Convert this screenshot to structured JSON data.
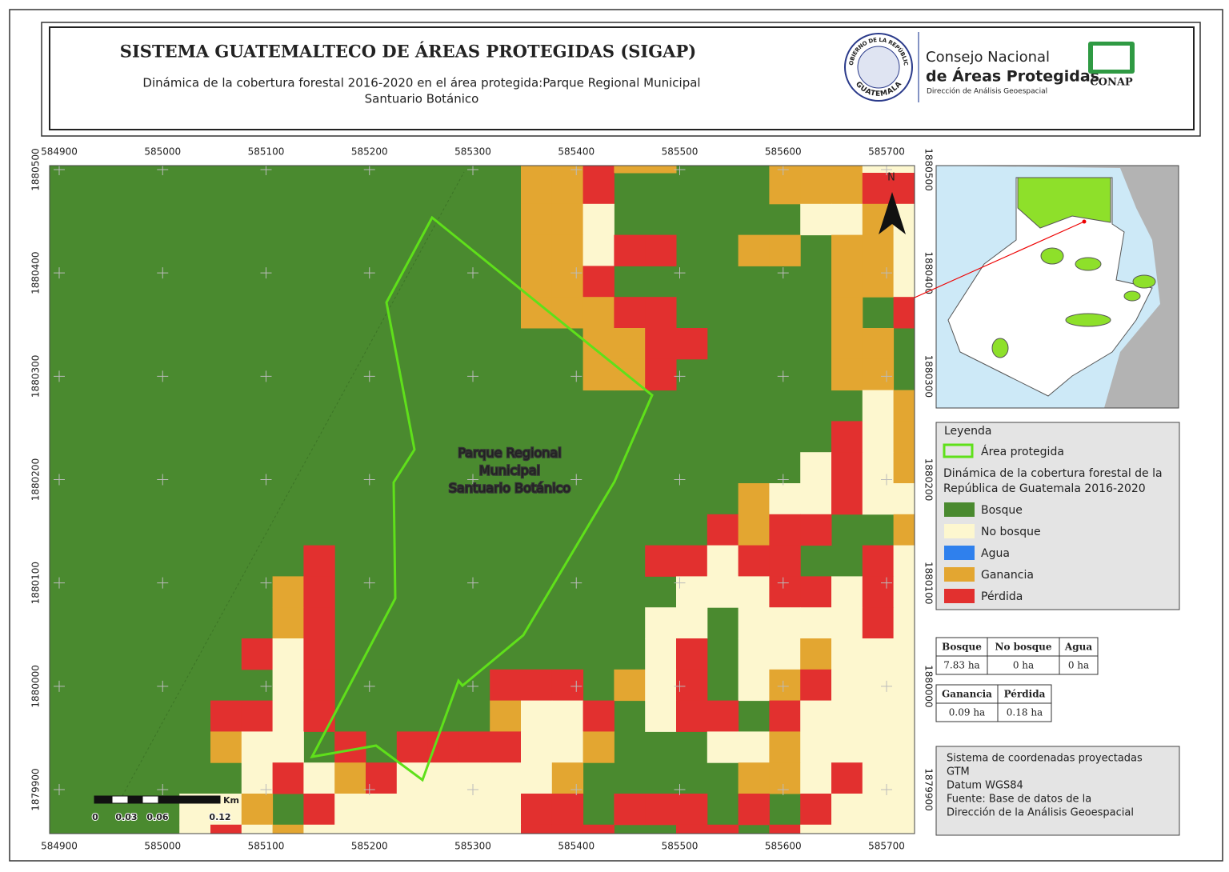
{
  "header": {
    "title": "SISTEMA GUATEMALTECO DE ÁREAS PROTEGIDAS  (SIGAP)",
    "subtitle": [
      "Dinámica de la cobertura forestal 2016-2020 en el área protegida:Parque Regional Municipal",
      "Santuario Botánico"
    ],
    "seal_top": "GOBIERNO DE LA REPÚBLICA",
    "seal_bottom": "GUATEMALA",
    "logo": [
      "Consejo Nacional",
      "de Áreas Protegidas",
      "Dirección de Análisis Geoespacial"
    ],
    "conap": "CONAP"
  },
  "map": {
    "area_label": [
      "Parque Regional",
      "Municipal",
      "Santuario Botánico"
    ],
    "north": "N",
    "x_ticks": [
      584900,
      585000,
      585100,
      585200,
      585300,
      585400,
      585500,
      585600,
      585700
    ],
    "y_ticks": [
      1880500,
      1880400,
      1880300,
      1880200,
      1880100,
      1880000,
      1879900
    ],
    "scale_unit": "Km",
    "scale_labels": [
      "0",
      "0.03",
      "0.06",
      "0.12"
    ]
  },
  "legend": {
    "title": "Leyenda",
    "area": "Área protegida",
    "area_color": "#5fe01a",
    "subtitle": [
      "Dinámica de la cobertura forestal de la",
      "República de Guatemala 2016-2020"
    ],
    "classes": [
      {
        "name": "Bosque",
        "color": "#4a8a2f"
      },
      {
        "name": "No bosque",
        "color": "#fdf7cf"
      },
      {
        "name": "Agua",
        "color": "#2f80ed"
      },
      {
        "name": "Ganancia",
        "color": "#e3a631"
      },
      {
        "name": "Pérdida",
        "color": "#e2302f"
      }
    ]
  },
  "table1": {
    "headers": [
      "Bosque",
      "No bosque",
      "Agua"
    ],
    "values": [
      "7.83 ha",
      "0 ha",
      "0 ha"
    ]
  },
  "table2": {
    "headers": [
      "Ganancia",
      "Pérdida"
    ],
    "values": [
      "0.09 ha",
      "0.18 ha"
    ]
  },
  "info": [
    "Sistema de coordenadas proyectadas",
    "GTM",
    "Datum WGS84",
    "Fuente: Base de datos de la",
    "Dirección de la Análisis Geoespacial"
  ]
}
